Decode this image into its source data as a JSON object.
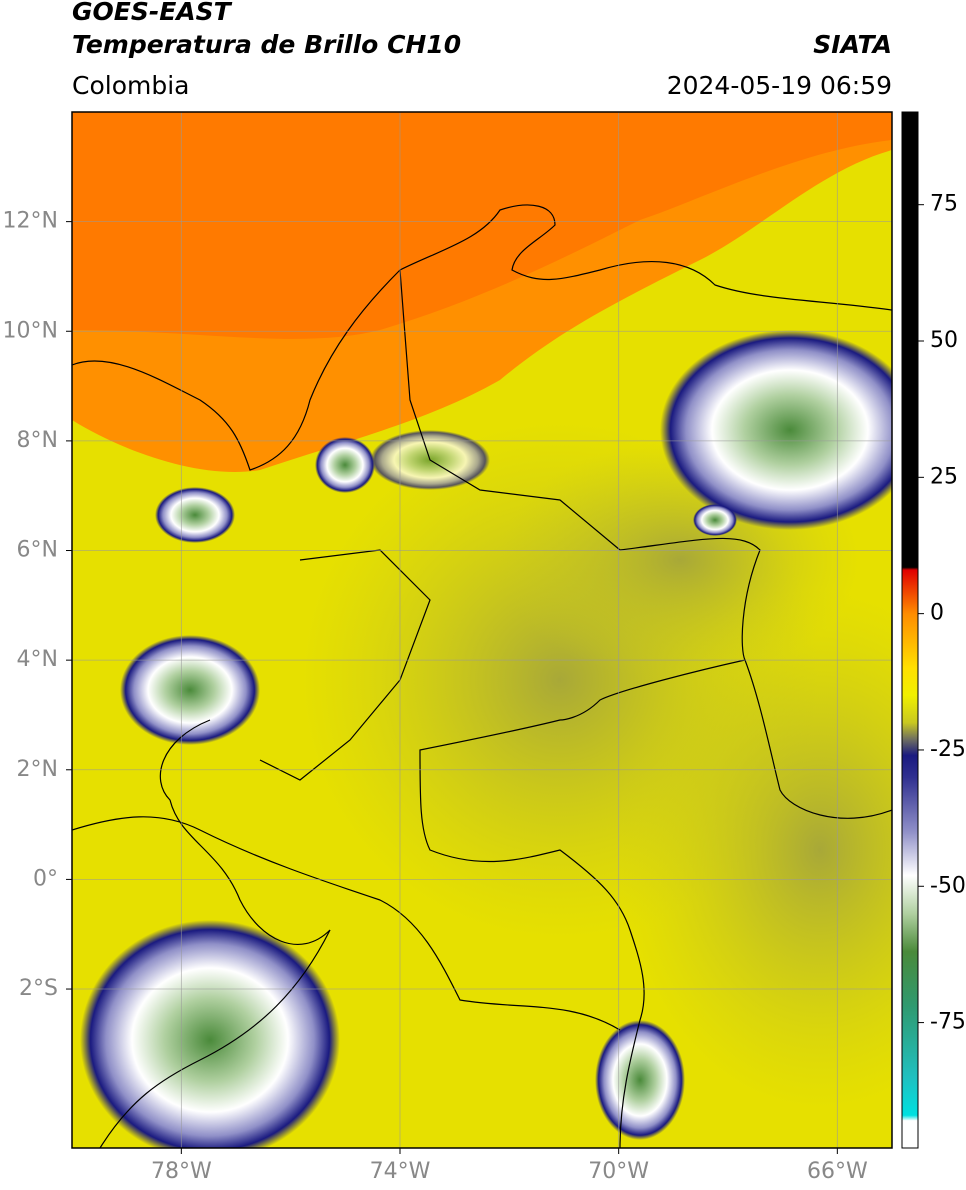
{
  "header": {
    "title": "GOES-EAST",
    "subtitle": "Temperatura de Brillo CH10",
    "region": "Colombia",
    "source": "SIATA",
    "datetime": "2024-05-19 06:59"
  },
  "map": {
    "xlim": [
      -80,
      -65
    ],
    "ylim": [
      -4.9,
      14
    ],
    "grid": true,
    "xticks": [
      {
        "value": -78,
        "label": "78°W"
      },
      {
        "value": -74,
        "label": "74°W"
      },
      {
        "value": -70,
        "label": "70°W"
      },
      {
        "value": -66,
        "label": "66°W"
      }
    ],
    "yticks": [
      {
        "value": 12,
        "label": "12°N"
      },
      {
        "value": 10,
        "label": "10°N"
      },
      {
        "value": 8,
        "label": "8°N"
      },
      {
        "value": 6,
        "label": "6°N"
      },
      {
        "value": 4,
        "label": "4°N"
      },
      {
        "value": 2,
        "label": "2°N"
      },
      {
        "value": 0,
        "label": "0°"
      },
      {
        "value": -2,
        "label": "2°S"
      }
    ]
  },
  "colorbar": {
    "lim": [
      -98,
      92
    ],
    "ticks": [
      75,
      50,
      25,
      0,
      -25,
      -50,
      -75
    ],
    "colormap": [
      {
        "value": 92,
        "color": "#000000"
      },
      {
        "value": 8.5,
        "color": "#000000"
      },
      {
        "value": 8,
        "color": "#e00000"
      },
      {
        "value": 0,
        "color": "#ff8c00"
      },
      {
        "value": -10,
        "color": "#ffe000"
      },
      {
        "value": -15,
        "color": "#f0f000"
      },
      {
        "value": -20,
        "color": "#c8c820"
      },
      {
        "value": -23,
        "color": "#707060"
      },
      {
        "value": -26,
        "color": "#1a1a80"
      },
      {
        "value": -30,
        "color": "#303090"
      },
      {
        "value": -40,
        "color": "#9090c8"
      },
      {
        "value": -48,
        "color": "#ffffff"
      },
      {
        "value": -55,
        "color": "#b0d0a0"
      },
      {
        "value": -62,
        "color": "#4a8a3a"
      },
      {
        "value": -72,
        "color": "#2f9a70"
      },
      {
        "value": -85,
        "color": "#20c0c0"
      },
      {
        "value": -92,
        "color": "#00e0e0"
      },
      {
        "value": -93,
        "color": "#ffffff"
      },
      {
        "value": -98,
        "color": "#ffffff"
      }
    ]
  }
}
